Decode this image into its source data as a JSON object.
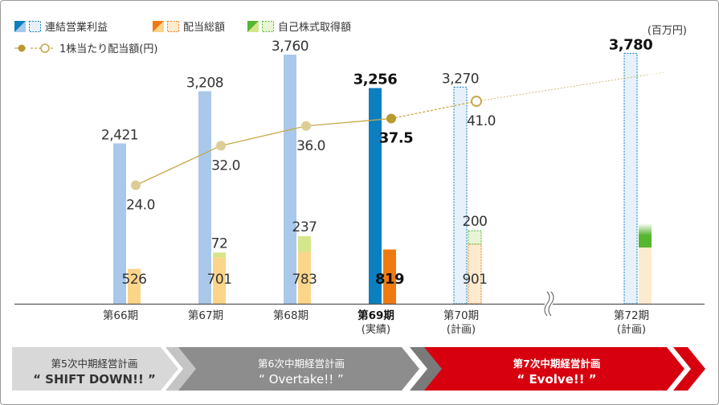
{
  "legend": {
    "profit": "連結営業利益",
    "dividend_total": "配当総額",
    "buyback": "自己株式取得額",
    "dps": "1株当たり配当額(円)"
  },
  "unit": "(百万円)",
  "colors": {
    "profit_actual": "#a9c8ea",
    "profit_current": "#0b7fbf",
    "profit_plan_fill": "#e8f1fa",
    "dividend_actual": "#fbd58a",
    "dividend_current": "#f07a12",
    "dividend_plan_fill": "#fdebcf",
    "buyback": "#d4e68a",
    "buyback_plan_fill": "#eaf5d8",
    "line": "#c8a84a",
    "marker": "#dccd97",
    "marker_current": "#b89a2e",
    "phase_gray": "#d8d8d8",
    "phase_mid": "#8d8d8d",
    "phase_red": "#d7000f"
  },
  "chart_data": {
    "type": "bar",
    "categories": [
      "第66期",
      "第67期",
      "第68期",
      "第69期",
      "第70期",
      "第72期"
    ],
    "category_notes": [
      "",
      "",
      "",
      "(実績)",
      "(計画)",
      "(計画)"
    ],
    "status": [
      "actual",
      "actual",
      "actual",
      "current",
      "plan",
      "plan"
    ],
    "series": [
      {
        "name": "連結営業利益",
        "values": [
          2421,
          3208,
          3760,
          3256,
          3270,
          3780
        ],
        "labels": [
          "2,421",
          "3,208",
          "3,760",
          "3,256",
          "3,270",
          "3,780"
        ]
      },
      {
        "name": "配当総額",
        "values": [
          526,
          701,
          783,
          819,
          901,
          null
        ],
        "labels": [
          "526",
          "701",
          "783",
          "819",
          "901",
          ""
        ]
      },
      {
        "name": "自己株式取得額",
        "values": [
          null,
          72,
          237,
          null,
          200,
          null
        ],
        "labels": [
          "",
          "72",
          "237",
          "",
          "200",
          ""
        ]
      },
      {
        "name": "1株当たり配当額(円)",
        "values": [
          24.0,
          32.0,
          36.0,
          37.5,
          41.0,
          null
        ],
        "labels": [
          "24.0",
          "32.0",
          "36.0",
          "37.5",
          "41.0",
          ""
        ]
      }
    ],
    "ylim_amount": [
      0,
      4100
    ],
    "ylim_dps": [
      0,
      55
    ]
  },
  "phases": [
    {
      "name": "第5次中期経営計画",
      "slogan": "“ SHIFT DOWN!! ”"
    },
    {
      "name": "第6次中期経営計画",
      "slogan": "“ Overtake!! ”"
    },
    {
      "name": "第7次中期経営計画",
      "slogan": "“ Evolve!! ”"
    }
  ]
}
